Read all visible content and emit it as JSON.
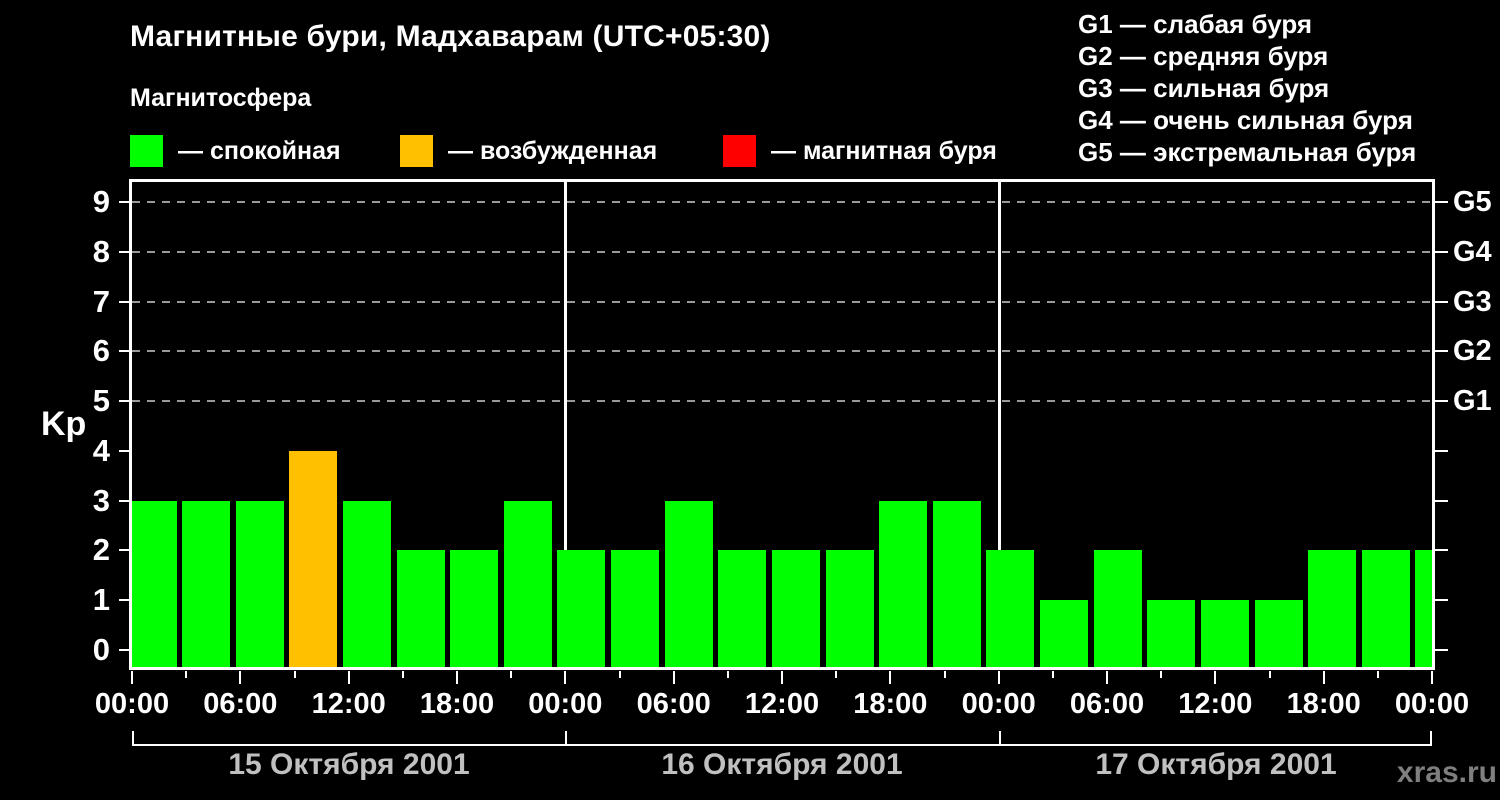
{
  "header": {
    "title": "Магнитные бури, Мадхаварам (UTC+05:30)",
    "subtitle": "Магнитосфера",
    "legend": [
      {
        "key": "quiet",
        "color": "#00ff00",
        "label": "— спокойная"
      },
      {
        "key": "excited",
        "color": "#ffc000",
        "label": "— возбужденная"
      },
      {
        "key": "storm",
        "color": "#ff0000",
        "label": "— магнитная буря"
      }
    ],
    "g_scale_legend": [
      "G1 — слабая буря",
      "G2 — средняя буря",
      "G3 — сильная буря",
      "G4 — очень сильная буря",
      "G5 — экстремальная буря"
    ]
  },
  "watermark": "xras.ru",
  "chart_data": {
    "type": "bar",
    "title": "Магнитные бури, Мадхаварам (UTC+05:30)",
    "subtitle": "Магнитосфера",
    "ylabel": "Kp",
    "ylim": [
      0,
      9.4
    ],
    "y_ticks": [
      0,
      1,
      2,
      3,
      4,
      5,
      6,
      7,
      8,
      9
    ],
    "gridlines_at_kp": [
      5,
      6,
      7,
      8,
      9
    ],
    "grid_style": "dashed horizontal gray lines at Kp 5–9",
    "right_axis": [
      {
        "kp": 5,
        "label": "G1"
      },
      {
        "kp": 6,
        "label": "G2"
      },
      {
        "kp": 7,
        "label": "G3"
      },
      {
        "kp": 8,
        "label": "G4"
      },
      {
        "kp": 9,
        "label": "G5"
      }
    ],
    "x_tick_labels": [
      "00:00",
      "06:00",
      "12:00",
      "18:00",
      "00:00",
      "06:00",
      "12:00",
      "18:00",
      "00:00",
      "06:00",
      "12:00",
      "18:00",
      "00:00"
    ],
    "hours_per_bar": 3,
    "days": [
      {
        "date": "15 Октября 2001",
        "kp": [
          3,
          3,
          3,
          4,
          3,
          2,
          2,
          3
        ]
      },
      {
        "date": "16 Октября 2001",
        "kp": [
          2,
          2,
          3,
          2,
          2,
          2,
          3,
          3
        ]
      },
      {
        "date": "17 Октября 2001",
        "kp": [
          2,
          1,
          2,
          1,
          1,
          1,
          2,
          2
        ]
      }
    ],
    "next_partial_bar_kp": 2,
    "colors": {
      "quiet": "#00ff00",
      "excited": "#ffc000",
      "storm": "#ff0000"
    },
    "color_rules": {
      "quiet_kp_max": 3,
      "excited_kp_max": 4,
      "storm_kp_min": 5
    },
    "legend_position": "top-left",
    "day_separators": "solid white vertical lines at day boundaries"
  }
}
